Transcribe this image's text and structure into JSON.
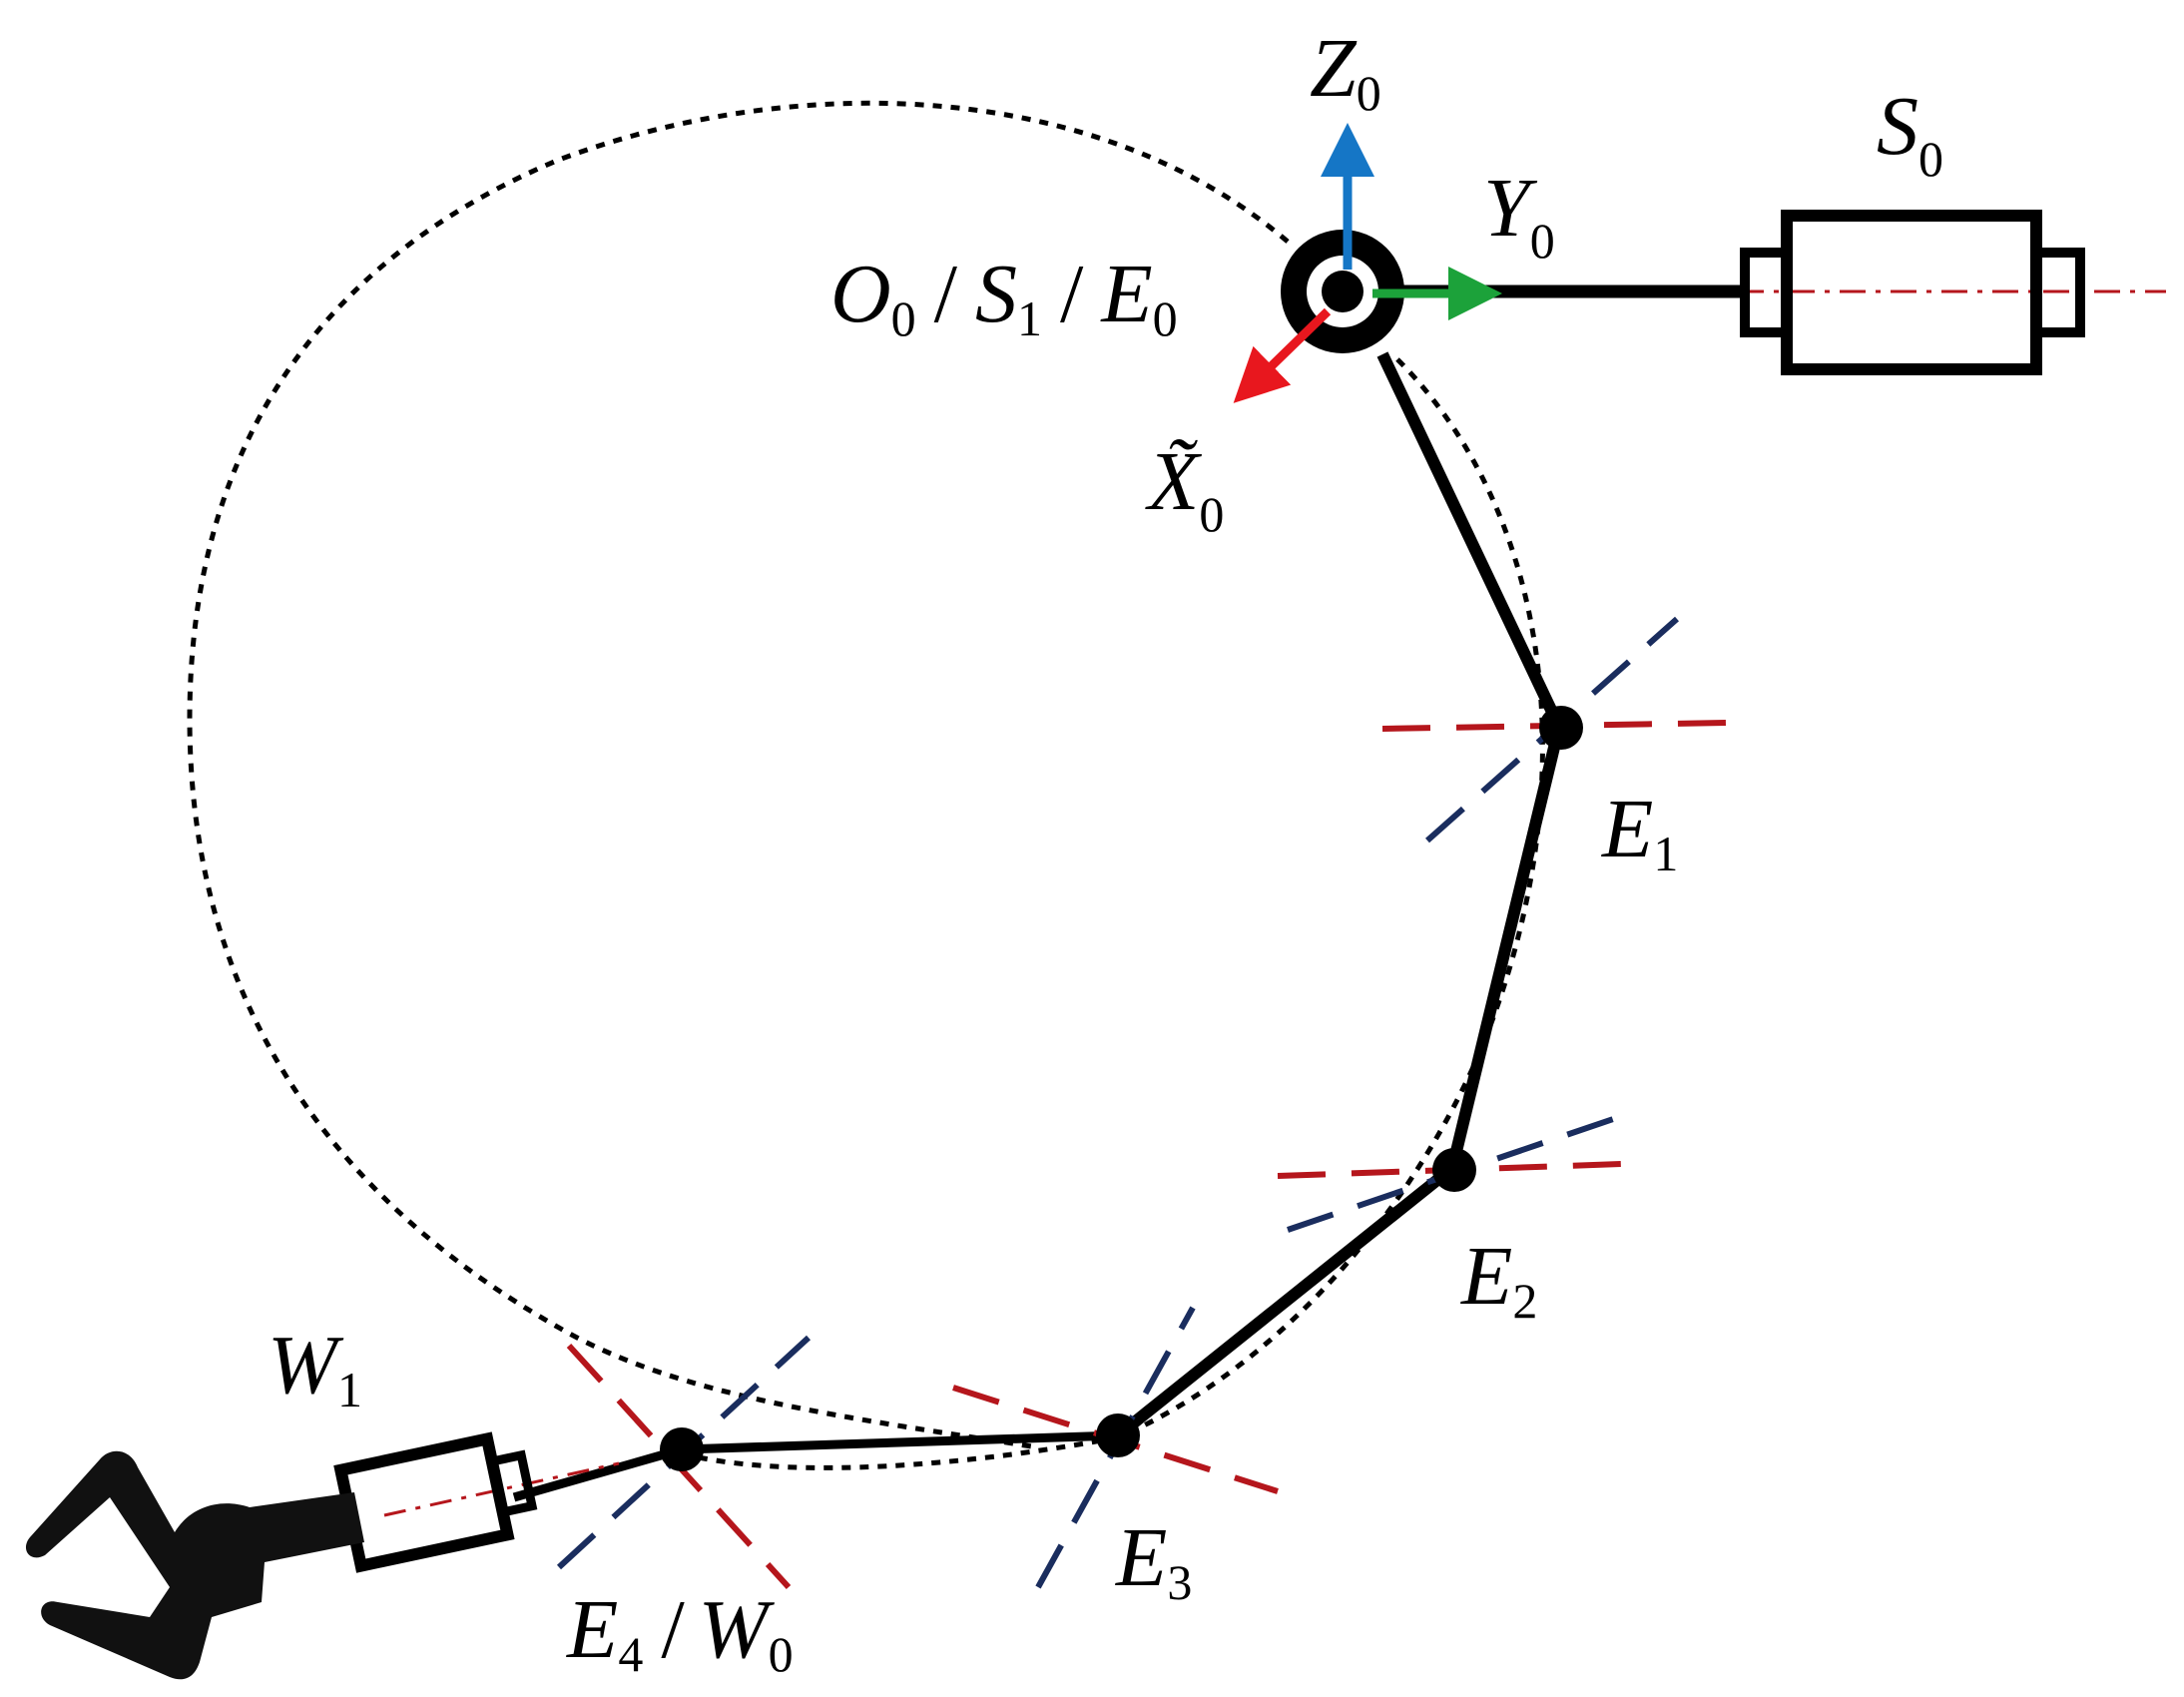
{
  "colors": {
    "link": "#000000",
    "x_axis": "#e8171e",
    "y_axis": "#1ca23a",
    "z_axis": "#1576c6",
    "joint_axis_a": "#b5161c",
    "joint_axis_b": "#1a2d5e",
    "background": "#ffffff"
  },
  "labels": {
    "z0": {
      "main": "Z",
      "sub": "0"
    },
    "y0": {
      "main": "Y",
      "sub": "0"
    },
    "x0": {
      "main": "X̃",
      "sub": "0"
    },
    "s0": {
      "main": "S",
      "sub": "0"
    },
    "origin": {
      "o": "O",
      "o_sub": "0",
      "s": "S",
      "s_sub": "1",
      "e": "E",
      "e_sub": "0",
      "sep": "/"
    },
    "e1": {
      "main": "E",
      "sub": "1"
    },
    "e2": {
      "main": "E",
      "sub": "2"
    },
    "e3": {
      "main": "E",
      "sub": "3"
    },
    "e4w0": {
      "e": "E",
      "e_sub": "4",
      "sep": "/",
      "w": "W",
      "w_sub": "0"
    },
    "w1": {
      "main": "W",
      "sub": "1"
    }
  },
  "icons": {
    "base_joint": "revolute-joint-icon",
    "shoulder_actuator": "actuator-cylinder-icon",
    "wrist_actuator": "actuator-cylinder-icon",
    "gripper": "gripper-claw-icon"
  }
}
